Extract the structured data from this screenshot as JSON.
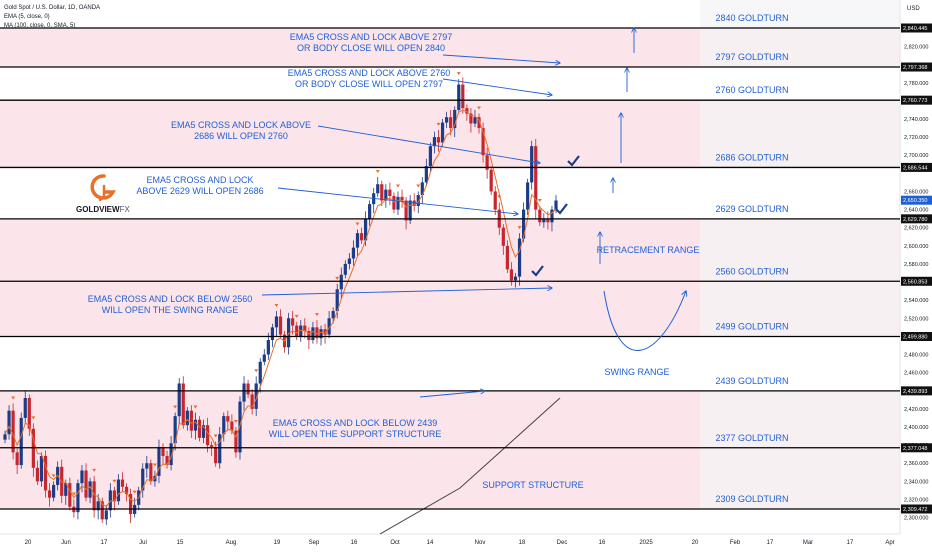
{
  "header": {
    "title": "Gold Spot / U.S. Dollar, 1D, OANDA",
    "indicator_1": "EMA (5, close, 0)",
    "indicator_2": "MA (100, close, 0, SMA, 5)",
    "currency": "USD"
  },
  "logo": {
    "brand": "GOLDVIEW",
    "suffix": "FX",
    "color": "#e8702a"
  },
  "colors": {
    "zone_fill": "#fbe4ea",
    "level_line": "#000000",
    "annotation_blue": "#1f5fd6",
    "candle_up": "#1c3c88",
    "candle_down": "#c8262d",
    "ema": "#e8702a",
    "ma": "#444444"
  },
  "chart_data": {
    "type": "candlestick",
    "ylim": [
      2295,
      2850
    ],
    "y_ticks": [
      "2,820.000",
      "2,800.000",
      "2,780.000",
      "2,740.000",
      "2,720.000",
      "2,700.000",
      "2,660.000",
      "2,640.000",
      "2,620.000",
      "2,600.000",
      "2,580.000",
      "2,540.000",
      "2,520.000",
      "2,480.000",
      "2,460.000",
      "2,420.000",
      "2,400.000",
      "2,380.000",
      "2,360.000",
      "2,340.000",
      "2,320.000",
      "2,300.000"
    ],
    "y_tick_values": [
      2820,
      2800,
      2780,
      2740,
      2720,
      2700,
      2660,
      2640,
      2620,
      2600,
      2580,
      2540,
      2520,
      2480,
      2460,
      2420,
      2400,
      2380,
      2360,
      2340,
      2320,
      2300
    ],
    "x_ticks": [
      "20",
      "Jun",
      "17",
      "Jul",
      "15",
      "Aug",
      "19",
      "Sep",
      "16",
      "Oct",
      "14",
      "Nov",
      "18",
      "Dec",
      "16",
      "2025",
      "20",
      "Feb",
      "17",
      "Mar",
      "17",
      "Apr"
    ],
    "price_labels": [
      {
        "text": "2,840.445",
        "value": 2840.445,
        "highlight": false
      },
      {
        "text": "2,797.368",
        "value": 2797.368,
        "highlight": false
      },
      {
        "text": "2,760.773",
        "value": 2760.773,
        "highlight": false
      },
      {
        "text": "2,686.544",
        "value": 2686.544,
        "highlight": false
      },
      {
        "text": "2,650.350",
        "value": 2650.35,
        "highlight": true
      },
      {
        "text": "2,629.780",
        "value": 2629.78,
        "highlight": false
      },
      {
        "text": "2,560.853",
        "value": 2560.853,
        "highlight": false
      },
      {
        "text": "2,499.880",
        "value": 2499.88,
        "highlight": false
      },
      {
        "text": "2,439.893",
        "value": 2439.893,
        "highlight": false
      },
      {
        "text": "2,377.048",
        "value": 2377.048,
        "highlight": false
      },
      {
        "text": "2,309.472",
        "value": 2309.472,
        "highlight": false
      }
    ],
    "levels": [
      {
        "value": 2840.445,
        "label": "2840 GOLDTURN"
      },
      {
        "value": 2797.368,
        "label": "2797 GOLDTURN"
      },
      {
        "value": 2760.773,
        "label": "2760 GOLDTURN"
      },
      {
        "value": 2686.544,
        "label": "2686 GOLDTURN"
      },
      {
        "value": 2629.78,
        "label": "2629 GOLDTURN"
      },
      {
        "value": 2560.853,
        "label": "2560 GOLDTURN"
      },
      {
        "value": 2499.88,
        "label": "2499 GOLDTURN"
      },
      {
        "value": 2439.893,
        "label": "2439 GOLDTURN"
      },
      {
        "value": 2377.048,
        "label": "2377 GOLDTURN"
      },
      {
        "value": 2309.472,
        "label": "2309 GOLDTURN"
      }
    ],
    "zones": [
      [
        2797.368,
        2840.445
      ],
      [
        2686.544,
        2760.773
      ],
      [
        2499.88,
        2629.78
      ],
      [
        2377.048,
        2439.893
      ],
      [
        2309.472,
        2377.048
      ]
    ],
    "annotations": [
      {
        "lines": [
          "EMA5 CROSS AND LOCK ABOVE 2797",
          "OR BODY CLOSE WILL OPEN 2840"
        ]
      },
      {
        "lines": [
          "EMA5 CROSS AND LOCK ABOVE 2760",
          "OR BODY CLOSE WILL OPEN 2797"
        ]
      },
      {
        "lines": [
          "EMA5 CROSS AND LOCK ABOVE",
          "2686 WILL OPEN 2760"
        ]
      },
      {
        "lines": [
          "EMA5 CROSS AND LOCK",
          "ABOVE 2629 WILL OPEN 2686"
        ]
      },
      {
        "lines": [
          "EMA5 CROSS AND LOCK BELOW 2560",
          "WILL OPEN THE SWING RANGE"
        ]
      },
      {
        "lines": [
          "EMA5 CROSS AND LOCK BELOW 2439",
          "WILL OPEN THE SUPPORT STRUCTURE"
        ]
      }
    ],
    "range_labels": [
      "RETRACEMENT RANGE",
      "SWING RANGE",
      "SUPPORT STRUCTURE"
    ],
    "closes": [
      2392,
      2418,
      2372,
      2358,
      2410,
      2432,
      2398,
      2355,
      2340,
      2368,
      2330,
      2322,
      2336,
      2356,
      2324,
      2338,
      2312,
      2306,
      2338,
      2352,
      2322,
      2340,
      2308,
      2318,
      2298,
      2308,
      2330,
      2318,
      2342,
      2334,
      2326,
      2304,
      2314,
      2330,
      2354,
      2360,
      2340,
      2346,
      2378,
      2368,
      2358,
      2382,
      2412,
      2448,
      2402,
      2418,
      2396,
      2408,
      2388,
      2402,
      2380,
      2378,
      2360,
      2392,
      2412,
      2406,
      2396,
      2372,
      2428,
      2448,
      2436,
      2420,
      2448,
      2472,
      2480,
      2496,
      2510,
      2522,
      2502,
      2488,
      2520,
      2512,
      2500,
      2512,
      2506,
      2496,
      2510,
      2498,
      2508,
      2502,
      2520,
      2528,
      2552,
      2568,
      2580,
      2586,
      2598,
      2614,
      2606,
      2630,
      2646,
      2658,
      2668,
      2650,
      2662,
      2655,
      2640,
      2654,
      2650,
      2628,
      2650,
      2644,
      2656,
      2670,
      2688,
      2710,
      2720,
      2714,
      2736,
      2742,
      2730,
      2750,
      2778,
      2752,
      2746,
      2735,
      2742,
      2730,
      2700,
      2684,
      2660,
      2640,
      2620,
      2600,
      2574,
      2562,
      2566,
      2608,
      2640,
      2670,
      2710,
      2640,
      2626,
      2630,
      2626,
      2640,
      2650
    ]
  }
}
